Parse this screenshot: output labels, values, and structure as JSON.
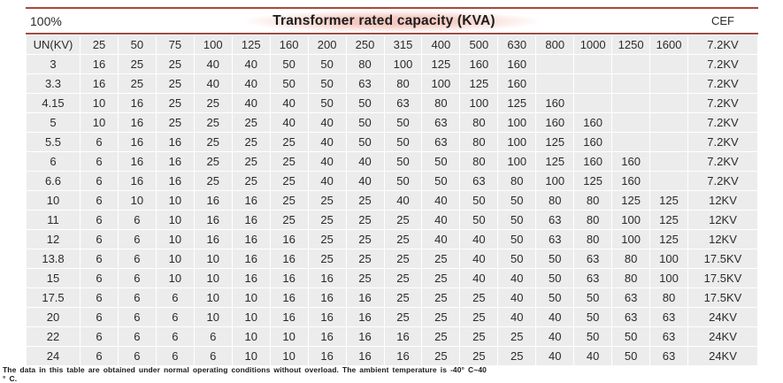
{
  "header": {
    "left_label": "100%",
    "title": "Transformer rated capacity (KVA)",
    "right_label": "CEF"
  },
  "table": {
    "columns": [
      "UN(KV)",
      "25",
      "50",
      "75",
      "100",
      "125",
      "160",
      "200",
      "250",
      "315",
      "400",
      "500",
      "630",
      "800",
      "1000",
      "1250",
      "1600",
      "7.2KV"
    ],
    "rows": [
      {
        "label": "3",
        "values": [
          "16",
          "25",
          "25",
          "40",
          "40",
          "50",
          "50",
          "80",
          "100",
          "125",
          "160",
          "160",
          "",
          "",
          "",
          ""
        ],
        "cef": "7.2KV"
      },
      {
        "label": "3.3",
        "values": [
          "16",
          "25",
          "25",
          "40",
          "40",
          "50",
          "50",
          "63",
          "80",
          "100",
          "125",
          "160",
          "",
          "",
          "",
          ""
        ],
        "cef": "7.2KV"
      },
      {
        "label": "4.15",
        "values": [
          "10",
          "16",
          "25",
          "25",
          "40",
          "40",
          "50",
          "50",
          "63",
          "80",
          "100",
          "125",
          "160",
          "",
          "",
          ""
        ],
        "cef": "7.2KV"
      },
      {
        "label": "5",
        "values": [
          "10",
          "16",
          "25",
          "25",
          "25",
          "40",
          "40",
          "50",
          "50",
          "63",
          "80",
          "100",
          "160",
          "160",
          "",
          ""
        ],
        "cef": "7.2KV"
      },
      {
        "label": "5.5",
        "values": [
          "6",
          "16",
          "16",
          "25",
          "25",
          "25",
          "40",
          "50",
          "50",
          "63",
          "80",
          "100",
          "125",
          "160",
          "",
          ""
        ],
        "cef": "7.2KV"
      },
      {
        "label": "6",
        "values": [
          "6",
          "16",
          "16",
          "25",
          "25",
          "25",
          "40",
          "40",
          "50",
          "50",
          "80",
          "100",
          "125",
          "160",
          "160",
          ""
        ],
        "cef": "7.2KV"
      },
      {
        "label": "6.6",
        "values": [
          "6",
          "16",
          "16",
          "25",
          "25",
          "25",
          "40",
          "40",
          "50",
          "50",
          "63",
          "80",
          "100",
          "125",
          "160",
          ""
        ],
        "cef": "7.2KV"
      },
      {
        "label": "10",
        "values": [
          "6",
          "10",
          "10",
          "16",
          "16",
          "25",
          "25",
          "25",
          "40",
          "40",
          "50",
          "50",
          "80",
          "80",
          "125",
          "125"
        ],
        "cef": "12KV"
      },
      {
        "label": "11",
        "values": [
          "6",
          "6",
          "10",
          "16",
          "16",
          "25",
          "25",
          "25",
          "25",
          "40",
          "50",
          "50",
          "63",
          "80",
          "100",
          "125"
        ],
        "cef": "12KV"
      },
      {
        "label": "12",
        "values": [
          "6",
          "6",
          "10",
          "16",
          "16",
          "16",
          "25",
          "25",
          "25",
          "40",
          "40",
          "50",
          "63",
          "80",
          "100",
          "125"
        ],
        "cef": "12KV"
      },
      {
        "label": "13.8",
        "values": [
          "6",
          "6",
          "10",
          "10",
          "16",
          "16",
          "25",
          "25",
          "25",
          "25",
          "40",
          "50",
          "50",
          "63",
          "80",
          "100"
        ],
        "cef": "17.5KV"
      },
      {
        "label": "15",
        "values": [
          "6",
          "6",
          "10",
          "10",
          "16",
          "16",
          "16",
          "25",
          "25",
          "25",
          "40",
          "40",
          "50",
          "63",
          "80",
          "100"
        ],
        "cef": "17.5KV"
      },
      {
        "label": "17.5",
        "values": [
          "6",
          "6",
          "6",
          "10",
          "10",
          "16",
          "16",
          "16",
          "25",
          "25",
          "25",
          "40",
          "50",
          "50",
          "63",
          "80"
        ],
        "cef": "17.5KV"
      },
      {
        "label": "20",
        "values": [
          "6",
          "6",
          "6",
          "10",
          "10",
          "16",
          "16",
          "16",
          "25",
          "25",
          "25",
          "40",
          "40",
          "50",
          "63",
          "63"
        ],
        "cef": "24KV"
      },
      {
        "label": "22",
        "values": [
          "6",
          "6",
          "6",
          "6",
          "10",
          "10",
          "16",
          "16",
          "16",
          "25",
          "25",
          "25",
          "40",
          "50",
          "50",
          "63"
        ],
        "cef": "24KV"
      },
      {
        "label": "24",
        "values": [
          "6",
          "6",
          "6",
          "6",
          "10",
          "10",
          "16",
          "16",
          "16",
          "25",
          "25",
          "25",
          "40",
          "40",
          "50",
          "63"
        ],
        "cef": "24KV"
      }
    ]
  },
  "footnote": {
    "line1": "The data in this table are obtained under normal operating conditions without overload. The ambient temperature is -40° C~40",
    "line2": "° C."
  },
  "colors": {
    "accent_top_line": "#a8493c",
    "accent_bottom_line": "#9a4e45",
    "cell_background": "#ececec",
    "title_highlight": "#f5c9c1",
    "text": "#2b2b2b"
  }
}
